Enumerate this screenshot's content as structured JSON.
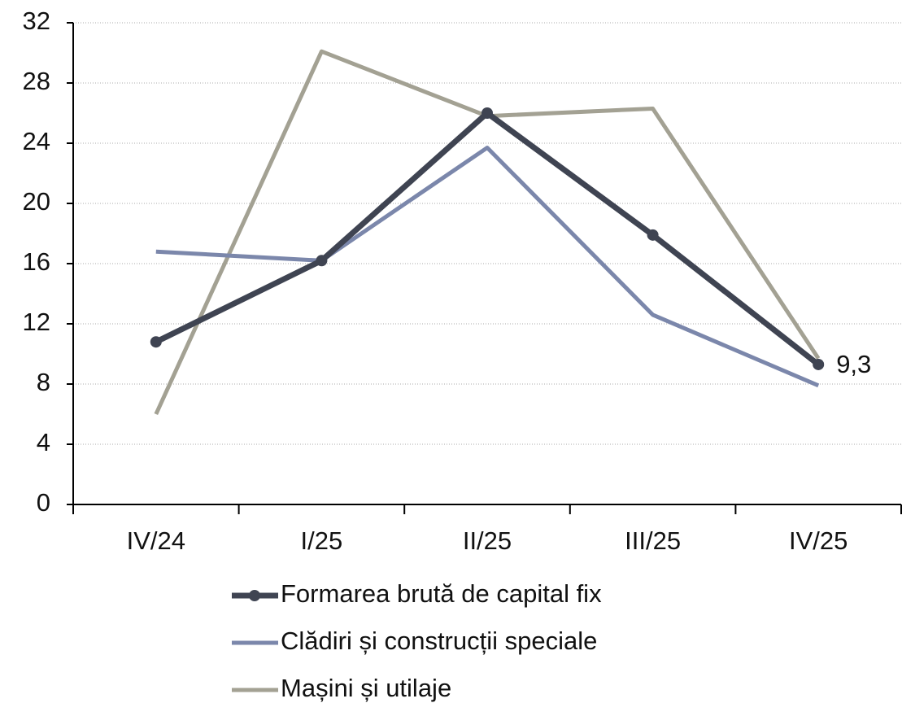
{
  "chart_data": {
    "type": "line",
    "categories": [
      "IV/24",
      "I/25",
      "II/25",
      "III/25",
      "IV/25"
    ],
    "series": [
      {
        "name": "Formarea brută de capital fix",
        "color": "#3f4452",
        "marker": true,
        "values": [
          10.8,
          16.2,
          26.0,
          17.9,
          9.3
        ],
        "value_labels": [
          null,
          null,
          null,
          null,
          "9,3"
        ]
      },
      {
        "name": "Clădiri și construcții speciale",
        "color": "#7b87ab",
        "marker": false,
        "values": [
          16.8,
          16.2,
          23.7,
          12.6,
          7.9
        ]
      },
      {
        "name": "Mașini și utilaje",
        "color": "#a3a193",
        "marker": false,
        "values": [
          6.0,
          30.1,
          25.8,
          26.3,
          9.7
        ]
      }
    ],
    "ylim": [
      0,
      32
    ],
    "yticks": [
      0,
      4,
      8,
      12,
      16,
      20,
      24,
      28,
      32
    ],
    "grid": true
  }
}
